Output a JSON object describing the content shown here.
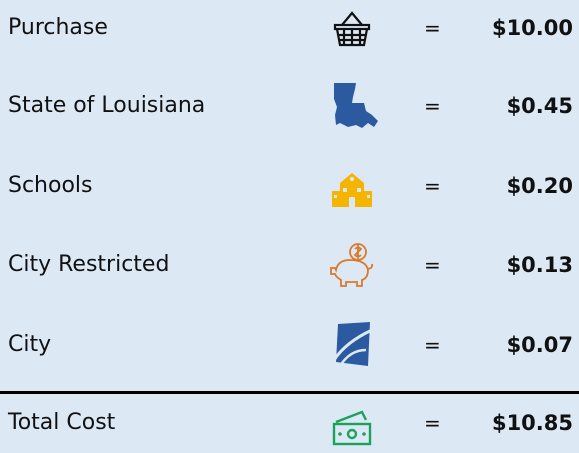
{
  "rows": [
    {
      "label": "Purchase",
      "sign": "=",
      "amount": "$10.00"
    },
    {
      "label": "State of Louisiana",
      "sign": "=",
      "amount": "$0.45"
    },
    {
      "label": "Schools",
      "sign": "=",
      "amount": "$0.20"
    },
    {
      "label": "City Restricted",
      "sign": "=",
      "amount": "$0.13"
    },
    {
      "label": "City",
      "sign": "=",
      "amount": "$0.07"
    }
  ],
  "total": {
    "label": "Total Cost",
    "sign": "=",
    "amount": "$10.85"
  }
}
